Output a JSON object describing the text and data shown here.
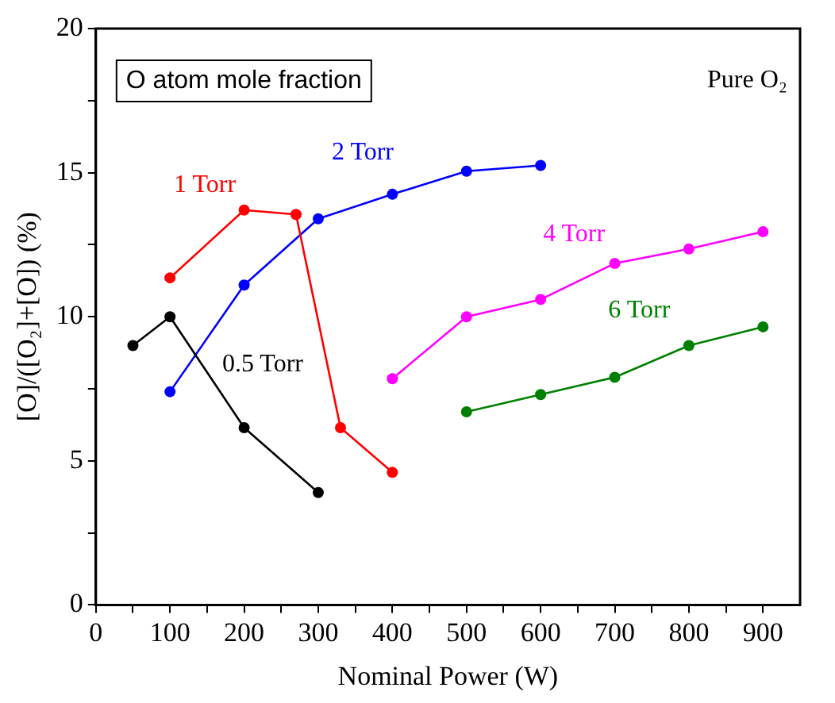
{
  "chart_data": {
    "type": "line",
    "xlabel": "Nominal Power (W)",
    "ylabel": "[O]/([O₂]+[O]) (%)",
    "annotations": [
      "O atom mole fraction",
      "Pure O₂"
    ],
    "xlim": [
      0,
      950
    ],
    "xticks": [
      0,
      {
        "value": 50,
        "label": null
      },
      100,
      {
        "value": 150,
        "label": null
      },
      200,
      {
        "value": 250,
        "label": null
      },
      300,
      {
        "value": 350,
        "label": null
      },
      400,
      {
        "value": 450,
        "label": null
      },
      500,
      {
        "value": 550,
        "label": null
      },
      600,
      {
        "value": 650,
        "label": null
      },
      700,
      {
        "value": 750,
        "label": null
      },
      800,
      {
        "value": 850,
        "label": null
      },
      900
    ],
    "ylim": [
      0,
      20
    ],
    "yticks": [
      0,
      {
        "value": 2.5,
        "label": null
      },
      5,
      {
        "value": 7.5,
        "label": null
      },
      10,
      {
        "value": 12.5,
        "label": null
      },
      15,
      {
        "value": 17.5,
        "label": null
      },
      20
    ],
    "grid": false,
    "legend": false,
    "marker": "circle",
    "line_style": "solid",
    "series": [
      {
        "name": "0.5 Torr",
        "color": "#000000",
        "x": [
          50,
          100,
          200,
          300
        ],
        "values": [
          9.0,
          10.0,
          6.15,
          3.9
        ]
      },
      {
        "name": "1 Torr",
        "color": "#ff0000",
        "x": [
          100,
          200,
          270,
          330,
          400
        ],
        "values": [
          11.35,
          13.7,
          13.55,
          6.15,
          4.6
        ]
      },
      {
        "name": "2 Torr",
        "color": "#0000ff",
        "x": [
          100,
          200,
          300,
          400,
          500,
          600
        ],
        "values": [
          7.4,
          11.1,
          13.4,
          14.25,
          15.05,
          15.25
        ]
      },
      {
        "name": "4 Torr",
        "color": "#ff00ff",
        "x": [
          400,
          500,
          600,
          700,
          800,
          900
        ],
        "values": [
          7.85,
          10.0,
          10.6,
          11.85,
          12.35,
          12.95
        ]
      },
      {
        "name": "6 Torr",
        "color": "#008000",
        "x": [
          500,
          600,
          700,
          800,
          900
        ],
        "values": [
          6.7,
          7.3,
          7.9,
          9.0,
          9.65
        ]
      }
    ]
  }
}
